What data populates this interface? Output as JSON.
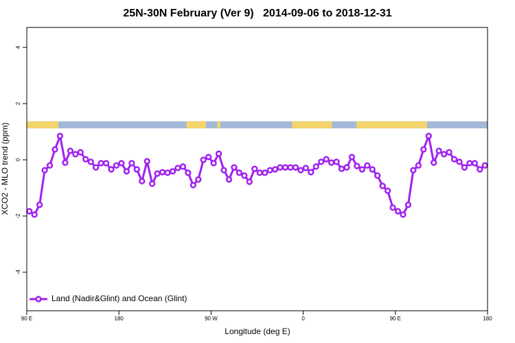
{
  "chart_data": {
    "type": "line",
    "title": "25N-30N February (Ver 9)   2014-09-06 to 2018-12-31",
    "x_label": "Longitude (deg E)",
    "y_label": "XCO2 - MLO trend (ppm)",
    "xlim": [
      90,
      540
    ],
    "ylim": [
      -5.37,
      4.71
    ],
    "xticks": [
      {
        "value": 90,
        "label": "90 E"
      },
      180,
      {
        "value": 270,
        "label": "90 W"
      },
      {
        "value": 360,
        "label": "0"
      },
      {
        "value": 450,
        "label": "90 E"
      },
      {
        "value": 540,
        "label": "180"
      }
    ],
    "yticks": [
      -4,
      -2,
      0,
      2,
      4
    ],
    "grid": false,
    "legend_position": "bottom-left",
    "land_ocean_band": {
      "ylim": [
        1.12,
        1.37
      ],
      "ocean_color": "#a3b9d9",
      "land_color": "#f4d46c",
      "land": [
        [
          90,
          121
        ],
        [
          246,
          265
        ],
        [
          276,
          279
        ],
        [
          349,
          388
        ],
        [
          412,
          481
        ]
      ]
    },
    "x": [
      92.5,
      97.5,
      102.5,
      107.5,
      112.5,
      117.5,
      122.5,
      127.5,
      132.5,
      137.5,
      142.5,
      147.5,
      152.5,
      157.5,
      162.5,
      167.5,
      172.5,
      177.5,
      182.5,
      187.5,
      192.5,
      197.5,
      202.5,
      207.5,
      212.5,
      217.5,
      222.5,
      227.5,
      232.5,
      237.5,
      242.5,
      247.5,
      252.5,
      257.5,
      262.5,
      267.5,
      272.5,
      277.5,
      282.5,
      287.5,
      292.5,
      297.5,
      302.5,
      307.5,
      312.5,
      317.5,
      322.5,
      327.5,
      332.5,
      337.5,
      342.5,
      347.5,
      352.5,
      357.5,
      362.5,
      367.5,
      372.5,
      377.5,
      382.5,
      387.5,
      392.5,
      397.5,
      402.5,
      407.5,
      412.5,
      417.5,
      422.5,
      427.5,
      432.5,
      437.5,
      442.5,
      447.5,
      452.5,
      457.5,
      462.5,
      467.5,
      472.5,
      477.5,
      482.5,
      487.5,
      492.5,
      497.5,
      502.5,
      507.5,
      512.5,
      517.5,
      522.5,
      527.5,
      532.5,
      537.5
    ],
    "series": [
      {
        "name": "Land (Nadir&Glint) and Ocean (Glint)",
        "color": "#a020f0",
        "values": [
          -1.83,
          -1.95,
          -1.6,
          -0.37,
          -0.2,
          0.37,
          0.85,
          -0.1,
          0.32,
          0.2,
          0.27,
          0.02,
          -0.07,
          -0.27,
          -0.12,
          -0.12,
          -0.34,
          -0.2,
          -0.12,
          -0.41,
          -0.12,
          -0.34,
          -0.76,
          -0.05,
          -0.85,
          -0.49,
          -0.44,
          -0.46,
          -0.41,
          -0.29,
          -0.24,
          -0.46,
          -0.9,
          -0.7,
          0,
          0.1,
          -0.12,
          0.22,
          -0.37,
          -0.7,
          -0.27,
          -0.46,
          -0.56,
          -0.78,
          -0.32,
          -0.46,
          -0.46,
          -0.37,
          -0.34,
          -0.27,
          -0.27,
          -0.27,
          -0.27,
          -0.37,
          -0.29,
          -0.44,
          -0.24,
          -0.07,
          0.02,
          -0.1,
          -0.07,
          -0.32,
          -0.27,
          0.1,
          -0.22,
          -0.34,
          -0.2,
          -0.34,
          -0.56,
          -0.93,
          -1.1,
          -1.7,
          -1.83,
          -1.95,
          -1.6,
          -0.37,
          -0.2,
          0.37,
          0.85,
          -0.1,
          0.32,
          0.2,
          0.27,
          0.02,
          -0.07,
          -0.27,
          -0.12,
          -0.12,
          -0.34,
          -0.2
        ]
      }
    ]
  }
}
